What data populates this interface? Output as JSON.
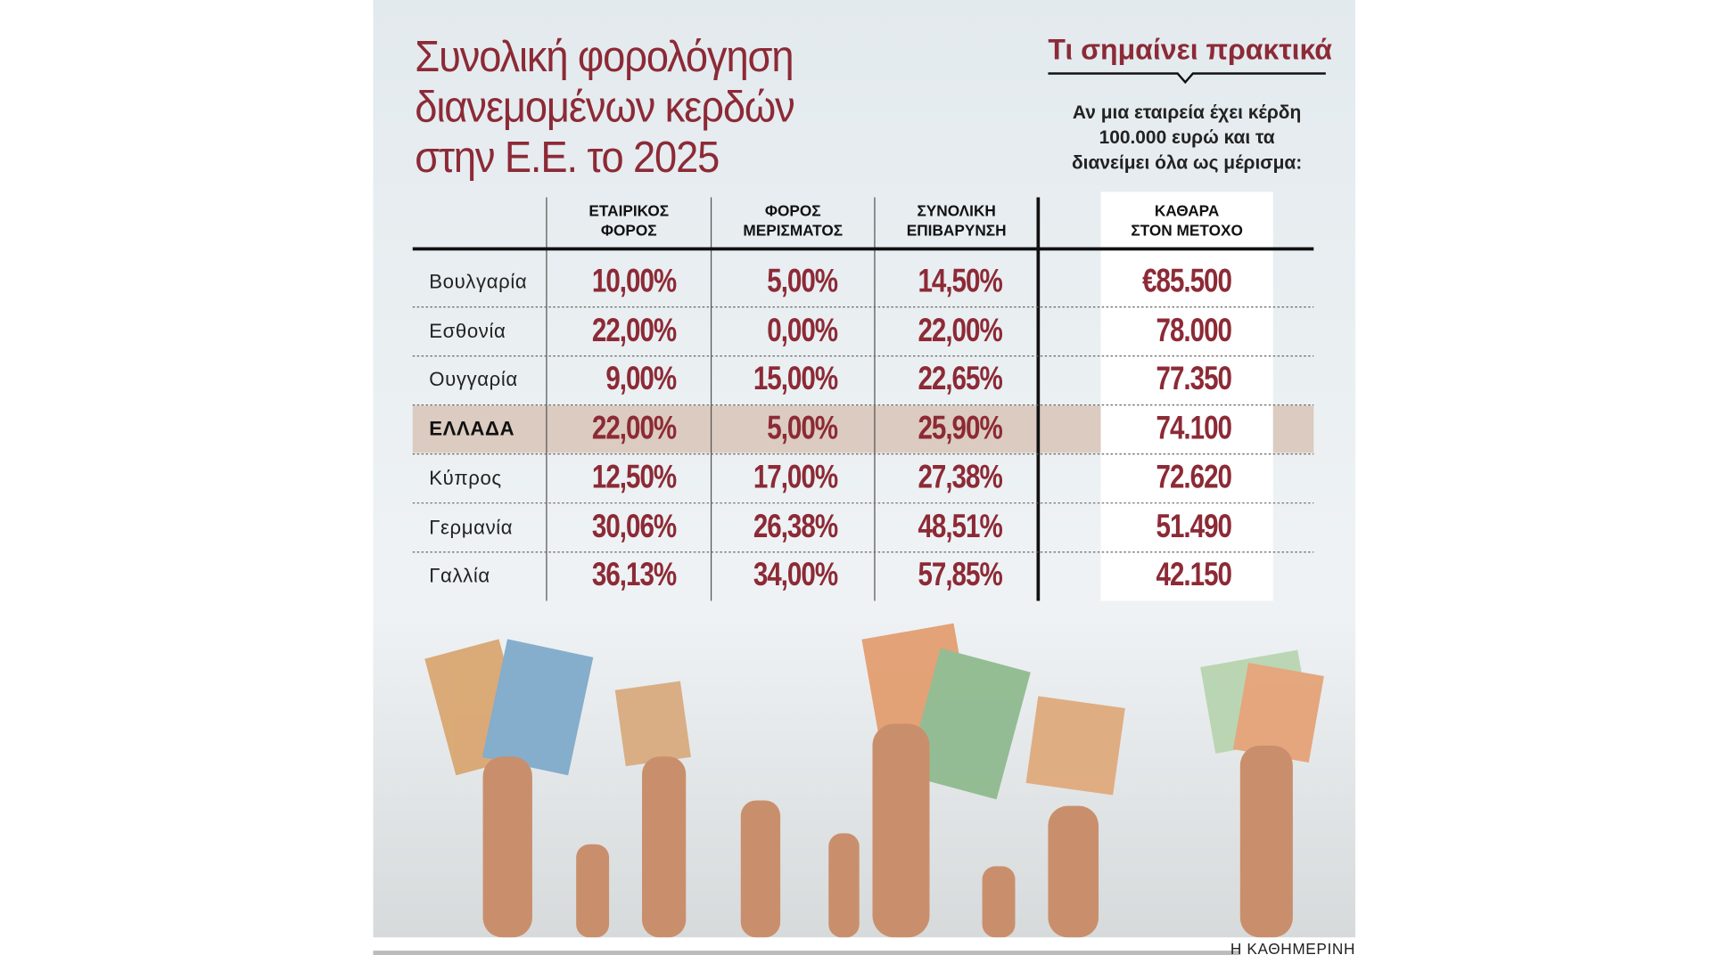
{
  "title_lines": [
    "Συνολική φορολόγηση",
    "διανεμομένων κερδών",
    "στην Ε.Ε. το 2025"
  ],
  "side_heading": "Τι σημαίνει πρακτικά",
  "side_note_lines": [
    "Αν μια εταιρεία έχει κέρδη",
    "100.000 ευρώ και τα",
    "διανείμει όλα ως μέρισμα:"
  ],
  "table": {
    "header": [
      "",
      "ΕΤΑΙΡΙΚΟΣ\nΦΟΡΟΣ",
      "ΦΟΡΟΣ\nΜΕΡΙΣΜΑΤΟΣ",
      "ΣΥΝΟΛΙΚΗ\nΕΠΙΒΑΡΥΝΣΗ",
      "ΚΑΘΑΡΑ\nΣΤΟΝ ΜΕΤΟΧΟ"
    ],
    "rows": [
      [
        "Βουλγαρία",
        "10,00%",
        "5,00%",
        "14,50%",
        "€85.500"
      ],
      [
        "Εσθονία",
        "22,00%",
        "0,00%",
        "22,00%",
        "78.000"
      ],
      [
        "Ουγγαρία",
        "9,00%",
        "15,00%",
        "22,65%",
        "77.350"
      ],
      [
        "ΕΛΛΑΔΑ",
        "22,00%",
        "5,00%",
        "25,90%",
        "74.100"
      ],
      [
        "Κύπρος",
        "12,50%",
        "17,00%",
        "27,38%",
        "72.620"
      ],
      [
        "Γερμανία",
        "30,06%",
        "26,38%",
        "48,51%",
        "51.490"
      ],
      [
        "Γαλλία",
        "36,13%",
        "34,00%",
        "57,85%",
        "42.150"
      ]
    ]
  },
  "source": "Η ΚΑΘΗΜΕΡΙΝΗ"
}
